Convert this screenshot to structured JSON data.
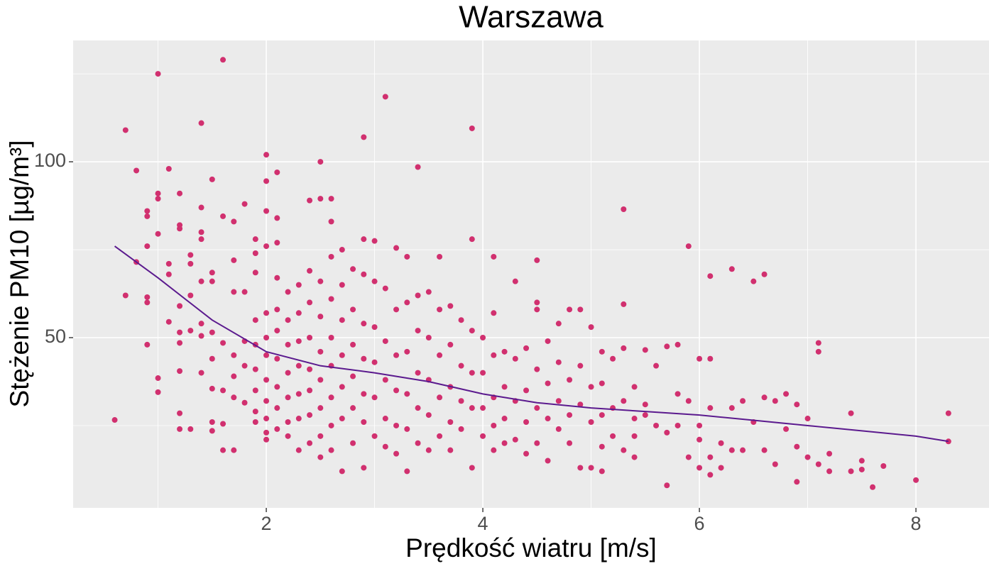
{
  "chart_data": {
    "type": "scatter",
    "title": "Warszawa",
    "x_label": "Prędkość wiatru [m/s]",
    "y_label": "Stężenie PM10 [µg/m³]",
    "color": "#d1306f",
    "xlim": [
      0.216,
      8.675
    ],
    "ylim": [
      1.6,
      134.5
    ],
    "xticks": [
      2,
      4,
      6,
      8
    ],
    "yticks": [
      50,
      100
    ],
    "grid": true,
    "x": [
      0.6,
      0.7,
      0.7,
      0.8,
      0.8,
      0.9,
      0.9,
      0.9,
      0.9,
      0.9,
      0.9,
      1.0,
      1.0,
      1.0,
      1.0,
      1.0,
      1.0,
      1.1,
      1.1,
      1.1,
      1.1,
      1.2,
      1.2,
      1.2,
      1.2,
      1.2,
      1.2,
      1.2,
      1.2,
      1.2,
      1.3,
      1.3,
      1.3,
      1.3,
      1.3,
      1.4,
      1.4,
      1.4,
      1.4,
      1.4,
      1.4,
      1.4,
      1.4,
      1.5,
      1.5,
      1.5,
      1.5,
      1.5,
      1.5,
      1.5,
      1.5,
      1.6,
      1.6,
      1.6,
      1.6,
      1.6,
      1.6,
      1.7,
      1.7,
      1.7,
      1.7,
      1.7,
      1.7,
      1.7,
      1.8,
      1.8,
      1.8,
      1.8,
      1.8,
      1.9,
      1.9,
      1.9,
      1.9,
      1.9,
      1.9,
      1.9,
      1.9,
      1.9,
      2.0,
      2.0,
      2.0,
      2.0,
      2.0,
      2.0,
      2.0,
      2.0,
      2.0,
      2.0,
      2.0,
      2.0,
      2.1,
      2.1,
      2.1,
      2.1,
      2.1,
      2.1,
      2.1,
      2.1,
      2.1,
      2.1,
      2.2,
      2.2,
      2.2,
      2.2,
      2.2,
      2.2,
      2.2,
      2.3,
      2.3,
      2.3,
      2.3,
      2.3,
      2.3,
      2.3,
      2.4,
      2.4,
      2.4,
      2.4,
      2.4,
      2.4,
      2.4,
      2.4,
      2.5,
      2.5,
      2.5,
      2.5,
      2.5,
      2.5,
      2.5,
      2.5,
      2.5,
      2.6,
      2.6,
      2.6,
      2.6,
      2.6,
      2.6,
      2.6,
      2.6,
      2.6,
      2.7,
      2.7,
      2.7,
      2.7,
      2.7,
      2.7,
      2.7,
      2.8,
      2.8,
      2.8,
      2.8,
      2.8,
      2.8,
      2.9,
      2.9,
      2.9,
      2.9,
      2.9,
      2.9,
      2.9,
      2.9,
      3.0,
      3.0,
      3.0,
      3.0,
      3.0,
      3.0,
      3.1,
      3.1,
      3.1,
      3.1,
      3.1,
      3.1,
      3.2,
      3.2,
      3.2,
      3.2,
      3.2,
      3.2,
      3.3,
      3.3,
      3.3,
      3.3,
      3.3,
      3.3,
      3.4,
      3.4,
      3.4,
      3.4,
      3.4,
      3.4,
      3.5,
      3.5,
      3.5,
      3.5,
      3.5,
      3.6,
      3.6,
      3.6,
      3.6,
      3.6,
      3.7,
      3.7,
      3.7,
      3.7,
      3.7,
      3.8,
      3.8,
      3.8,
      3.8,
      3.9,
      3.9,
      3.9,
      3.9,
      3.9,
      3.9,
      4.0,
      4.0,
      4.0,
      4.0,
      4.1,
      4.1,
      4.1,
      4.1,
      4.1,
      4.1,
      4.2,
      4.2,
      4.2,
      4.2,
      4.3,
      4.3,
      4.3,
      4.3,
      4.4,
      4.4,
      4.4,
      4.4,
      4.5,
      4.5,
      4.5,
      4.5,
      4.5,
      4.5,
      4.6,
      4.6,
      4.6,
      4.6,
      4.7,
      4.7,
      4.7,
      4.7,
      4.8,
      4.8,
      4.8,
      4.8,
      4.9,
      4.9,
      4.9,
      4.9,
      5.0,
      5.0,
      5.0,
      5.0,
      5.1,
      5.1,
      5.1,
      5.1,
      5.1,
      5.2,
      5.2,
      5.2,
      5.3,
      5.3,
      5.3,
      5.3,
      5.3,
      5.4,
      5.4,
      5.4,
      5.4,
      5.5,
      5.5,
      5.5,
      5.6,
      5.6,
      5.7,
      5.7,
      5.7,
      5.8,
      5.8,
      5.8,
      5.9,
      5.9,
      5.9,
      6.0,
      6.0,
      6.0,
      6.0,
      6.1,
      6.1,
      6.1,
      6.1,
      6.1,
      6.2,
      6.2,
      6.3,
      6.3,
      6.3,
      6.4,
      6.4,
      6.5,
      6.5,
      6.6,
      6.6,
      6.6,
      6.7,
      6.7,
      6.8,
      6.8,
      6.9,
      6.9,
      6.9,
      7.0,
      7.0,
      7.1,
      7.1,
      7.1,
      7.2,
      7.2,
      7.4,
      7.4,
      7.5,
      7.5,
      7.6,
      7.7,
      8.0,
      8.3,
      8.3
    ],
    "y": [
      26.6,
      109,
      62,
      97.5,
      71.5,
      86,
      84.5,
      76,
      61.5,
      60,
      48,
      125,
      91,
      89.5,
      79.5,
      38.5,
      34.5,
      98,
      71,
      68,
      54.5,
      91,
      82,
      81,
      59,
      51.5,
      48.5,
      40.5,
      28.5,
      24,
      73.5,
      71,
      62,
      52,
      24,
      111,
      87,
      80,
      78,
      66,
      54,
      50.5,
      40,
      95,
      68.5,
      66,
      51.5,
      44,
      35.5,
      26,
      23.5,
      129,
      84.5,
      48.5,
      35,
      25.5,
      18,
      83,
      72,
      63,
      45,
      39,
      33,
      18,
      88,
      63,
      49,
      42,
      31.5,
      78,
      74,
      68.5,
      55,
      48,
      41,
      35,
      29,
      26,
      102,
      94.5,
      86,
      76,
      57,
      50,
      45,
      38,
      32,
      27,
      23,
      21,
      97,
      84,
      77,
      67,
      58,
      52,
      44,
      36,
      30,
      24,
      63,
      55,
      48,
      40,
      33,
      26,
      22,
      65,
      57,
      49,
      42,
      34,
      27,
      18,
      89,
      69,
      60,
      50,
      41,
      35,
      28,
      20,
      100,
      89.5,
      66,
      56,
      46,
      38,
      30,
      22,
      16,
      89.5,
      83,
      73,
      61,
      50,
      42,
      33,
      25,
      18,
      75,
      65,
      55,
      45,
      36,
      27,
      12,
      69.5,
      58,
      48,
      39,
      30,
      20,
      107,
      78,
      68,
      54,
      44,
      34,
      26,
      13,
      77.5,
      66,
      53,
      43,
      33,
      22,
      118.5,
      64,
      49,
      38,
      27,
      19,
      75.5,
      58,
      45,
      35,
      25,
      17,
      73,
      60,
      46,
      34,
      24,
      12,
      98.5,
      62,
      52,
      40,
      30,
      20,
      63,
      50,
      38,
      28,
      18,
      73,
      58,
      45,
      33,
      22,
      59,
      48,
      36,
      26,
      18,
      55,
      42,
      32,
      24,
      109.5,
      78,
      52,
      40,
      30,
      13,
      50,
      40,
      30,
      22,
      73,
      57,
      45,
      33,
      25,
      18,
      46,
      36,
      27,
      20,
      66,
      44,
      32,
      21,
      47,
      35,
      26,
      17,
      72,
      60,
      58,
      41,
      30,
      20,
      49,
      37,
      27,
      15,
      54,
      43,
      32,
      24,
      58,
      38,
      28,
      20,
      58,
      42,
      31,
      13,
      53,
      36,
      26,
      13,
      46,
      37,
      28,
      19,
      12,
      44,
      30,
      22,
      86.5,
      59.5,
      47,
      32,
      18,
      36,
      27,
      22,
      16,
      46.5,
      31,
      28,
      42,
      25,
      47.5,
      23,
      8,
      48,
      34,
      25,
      76,
      32,
      16,
      44,
      25,
      21,
      13,
      67.5,
      44,
      30,
      16,
      11,
      20,
      13,
      69.5,
      30,
      18,
      32,
      18,
      66,
      26,
      68,
      33,
      18,
      32,
      14,
      34,
      24,
      31,
      19,
      9,
      27,
      16,
      48.5,
      46,
      14,
      17,
      12,
      28.5,
      12,
      15,
      12.5,
      7.5,
      13.5,
      9.5,
      28.5,
      20.5
    ],
    "smooth": {
      "color": "#5b1a8e",
      "x": [
        0.6,
        1.0,
        1.5,
        2.0,
        2.5,
        3.0,
        3.5,
        4.0,
        4.5,
        5.0,
        5.5,
        6.0,
        6.5,
        7.0,
        7.5,
        8.0,
        8.3
      ],
      "y": [
        76,
        67,
        55,
        46,
        42,
        40,
        37.5,
        34,
        31.5,
        30,
        29,
        28,
        26.5,
        25,
        23.5,
        22,
        20.5
      ]
    }
  }
}
